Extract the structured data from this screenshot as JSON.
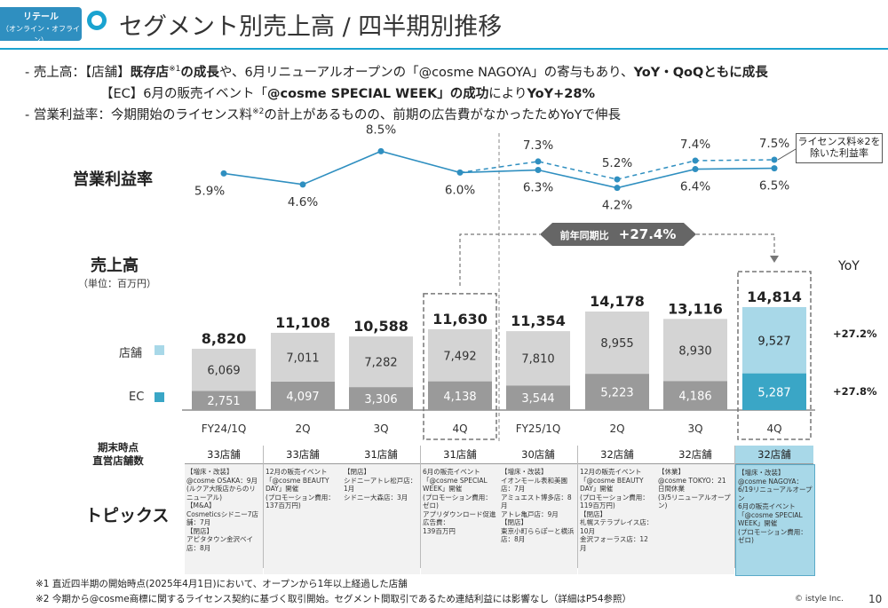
{
  "header": {
    "tag_line1": "リテール",
    "tag_line2": "（オンライン・オフライン）",
    "title": "セグメント別売上高 / 四半期別推移",
    "page_number": "10",
    "copyright": "© istyle Inc."
  },
  "bullets": {
    "b1_prefix": "- 売上高：【店舗】",
    "b1_bold1": "既存店",
    "b1_sup1": "※1",
    "b1_bold2": "の成長",
    "b1_mid": "や、6月リニューアルオープンの「@cosme NAGOYA」の寄与もあり、",
    "b1_bold3": "YoY・QoQともに成長",
    "b2_prefix": "【EC】6月の販売イベント「",
    "b2_bold1": "@cosme SPECIAL WEEK」の成功",
    "b2_mid": "により",
    "b2_bold2": "YoY+28%",
    "b3_prefix": "- 営業利益率：今期開始のライセンス料",
    "b3_sup": "※2",
    "b3_rest": "の計上があるものの、前期の広告費がなかったためYoYで伸長"
  },
  "labels": {
    "op_margin": "営業利益率",
    "sales": "売上高",
    "sales_unit": "（単位：百万円）",
    "legend_store": "店舗",
    "legend_ec": "EC",
    "yoy_header": "YoY",
    "stores_label_1": "期末時点",
    "stores_label_2": "直営店舗数",
    "topics": "トピックス",
    "license_note_1": "ライセンス料※2を",
    "license_note_2": "除いた利益率",
    "yoy_badge_prefix": "前年同期比",
    "yoy_badge_value": "+27.4%",
    "yoy_store": "+27.2%",
    "yoy_ec": "+27.8%"
  },
  "colors": {
    "store": "#d4d4d4",
    "ec": "#9a9a9a",
    "store_hl": "#a8d8e8",
    "ec_hl": "#3aa6c6",
    "line": "#2f8fc0"
  },
  "chart_data": {
    "type": "bar",
    "categories": [
      "FY24/1Q",
      "2Q",
      "3Q",
      "4Q",
      "FY25/1Q",
      "2Q",
      "3Q",
      "4Q"
    ],
    "series": [
      {
        "name": "店舗",
        "values": [
          6069,
          7011,
          7282,
          7492,
          7810,
          8955,
          8930,
          9527
        ]
      },
      {
        "name": "EC",
        "values": [
          2751,
          4097,
          3306,
          4138,
          3544,
          5223,
          4186,
          5287
        ]
      }
    ],
    "totals": [
      8820,
      11108,
      10588,
      11630,
      11354,
      14178,
      13116,
      14814
    ],
    "totals_text": [
      "8,820",
      "11,108",
      "10,588",
      "11,630",
      "11,354",
      "14,178",
      "13,116",
      "14,814"
    ],
    "store_text": [
      "6,069",
      "7,011",
      "7,282",
      "7,492",
      "7,810",
      "8,955",
      "8,930",
      "9,527"
    ],
    "ec_text": [
      "2,751",
      "4,097",
      "3,306",
      "4,138",
      "3,544",
      "5,223",
      "4,186",
      "5,287"
    ],
    "op_margin": [
      5.9,
      4.6,
      8.5,
      6.0,
      6.3,
      4.2,
      6.4,
      6.5
    ],
    "op_margin_text": [
      "5.9%",
      "4.6%",
      "8.5%",
      "6.0%",
      "6.3%",
      "4.2%",
      "6.4%",
      "6.5%"
    ],
    "op_margin_ex_license": [
      null,
      null,
      null,
      null,
      7.3,
      5.2,
      7.4,
      7.5
    ],
    "op_margin_ex_license_text": [
      "",
      "",
      "",
      "",
      "7.3%",
      "5.2%",
      "7.4%",
      "7.5%"
    ],
    "store_counts": [
      "33店舗",
      "33店舗",
      "31店舗",
      "31店舗",
      "30店舗",
      "32店舗",
      "32店舗",
      "32店舗"
    ]
  },
  "topics": [
    "【増床・改装】\n@cosme OSAKA：9月\n(ルクア大阪店からのリニューアル)\n【M&A】\nCosmeticsシドニー7店舗：7月\n【閉店】\nアピタタウン金沢ベイ店：8月",
    "12月の販売イベント\n「@cosme BEAUTY DAY」開催\n(プロモーション費用：137百万円)",
    "【閉店】\nシドニーアトレ松戸店：1月\nシドニー大森店：3月",
    "6月の販売イベント\n「@cosme SPECIAL WEEK」開催\n(プロモーション費用：ゼロ)\nアプリダウンロード促進広告費：\n139百万円",
    "【増床・改装】\nイオンモール表和美園店：7月\nアミュエスト博多店：8月\nアトレ亀戸店：9月\n【閉店】\n東京小町ららぽーと横浜店：8月",
    "12月の販売イベント\n「@cosme BEAUTY DAY」開催\n(プロモーション費用：119百万円)\n【閉店】\n札幌ステラプレイス店：10月\n金沢フォーラス店：12月",
    "【休業】\n@cosme TOKYO：21日間休業\n(3/5リニューアルオープン)",
    "【増床・改装】\n@cosme NAGOYA：6/19リニューアルオープン\n6月の販売イベント\n「@cosme SPECIAL WEEK」開催\n(プロモーション費用：ゼロ)"
  ],
  "footnotes": {
    "n1": "※1 直近四半期の開始時点(2025年4月1日)において、オープンから1年以上経過した店舗",
    "n2": "※2 今期から@cosme商標に関するライセンス契約に基づく取引開始。セグメント間取引であるため連結利益には影響なし（詳細はP54参照）"
  }
}
